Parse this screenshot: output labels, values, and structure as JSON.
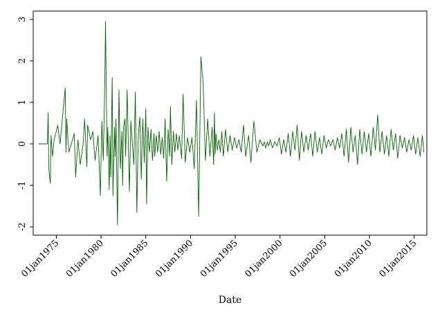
{
  "chart_data": {
    "type": "line",
    "title": "",
    "xlabel": "Date",
    "ylabel": "",
    "x_type": "date",
    "xlim": [
      "1972-06-01",
      "2016-06-01"
    ],
    "ylim": [
      -2.2,
      3.2
    ],
    "yticks": [
      {
        "value": -2,
        "label": "-2"
      },
      {
        "value": -1,
        "label": "-1"
      },
      {
        "value": 0,
        "label": "0"
      },
      {
        "value": 1,
        "label": "1"
      },
      {
        "value": 2,
        "label": "2"
      },
      {
        "value": 3,
        "label": "3"
      }
    ],
    "xticks": [
      {
        "value": "1975-01-01",
        "label": "01jan1975"
      },
      {
        "value": "1980-01-01",
        "label": "01jan1980"
      },
      {
        "value": "1985-01-01",
        "label": "01jan1985"
      },
      {
        "value": "1990-01-01",
        "label": "01jan1990"
      },
      {
        "value": "1995-01-01",
        "label": "01jan1995"
      },
      {
        "value": "2000-01-01",
        "label": "01jan2000"
      },
      {
        "value": "2005-01-01",
        "label": "01jan2005"
      },
      {
        "value": "2010-01-01",
        "label": "01jan2010"
      },
      {
        "value": "2015-01-01",
        "label": "01jan2015"
      }
    ],
    "grid": false,
    "legend": "none",
    "line_color": "#006400",
    "series": [
      {
        "x": [
          "1973-01-01",
          "1974-01-01",
          "1974-02-01",
          "1974-03-01",
          "1974-05-01",
          "1974-06-01",
          "1974-08-01",
          "1974-10-01",
          "1975-03-01",
          "1975-06-01",
          "1976-01-01",
          "1976-02-01",
          "1976-03-01",
          "1976-05-01",
          "1976-06-01",
          "1977-01-01",
          "1977-03-01",
          "1977-06-01",
          "1977-09-01",
          "1978-01-01",
          "1978-03-01",
          "1978-06-01",
          "1978-07-01",
          "1978-11-01",
          "1979-02-01",
          "1979-05-01",
          "1979-09-01",
          "1979-12-01",
          "1980-02-01",
          "1980-04-01",
          "1980-06-01",
          "1980-07-01",
          "1980-09-01",
          "1980-10-01",
          "1980-12-01",
          "1981-01-01",
          "1981-02-01",
          "1981-04-01",
          "1981-05-01",
          "1981-07-01",
          "1981-08-01",
          "1981-09-01",
          "1981-11-01",
          "1982-01-01",
          "1982-03-01",
          "1982-05-01",
          "1982-06-01",
          "1982-07-01",
          "1982-09-01",
          "1982-10-01",
          "1982-12-01",
          "1983-03-01",
          "1983-05-01",
          "1983-09-01",
          "1983-11-01",
          "1984-01-01",
          "1984-03-01",
          "1984-05-01",
          "1984-07-01",
          "1984-09-01",
          "1984-11-01",
          "1985-01-01",
          "1985-02-01",
          "1985-04-01",
          "1985-06-01",
          "1985-08-01",
          "1985-10-01",
          "1985-12-01",
          "1986-01-01",
          "1986-03-01",
          "1986-05-01",
          "1986-07-01",
          "1986-09-01",
          "1986-11-01",
          "1987-01-01",
          "1987-03-01",
          "1987-05-01",
          "1987-07-01",
          "1987-09-01",
          "1987-10-01",
          "1987-12-01",
          "1988-02-01",
          "1988-04-01",
          "1988-06-01",
          "1988-08-01",
          "1988-10-01",
          "1989-01-01",
          "1989-03-01",
          "1989-06-01",
          "1989-09-01",
          "1989-12-01",
          "1990-03-01",
          "1990-06-01",
          "1990-09-01",
          "1990-12-01",
          "1991-03-01",
          "1991-06-01",
          "1991-09-01",
          "1991-12-01",
          "1992-03-01",
          "1992-06-01",
          "1992-08-01",
          "1992-09-01",
          "1992-10-01",
          "1992-11-01",
          "1993-01-01",
          "1993-03-01",
          "1993-05-01",
          "1993-07-01",
          "1993-09-01",
          "1993-12-01",
          "1994-03-01",
          "1994-06-01",
          "1994-09-01",
          "1994-12-01",
          "1995-03-01",
          "1995-06-01",
          "1995-09-01",
          "1995-12-01",
          "1996-03-01",
          "1996-07-01",
          "1996-10-01",
          "1997-02-01",
          "1997-06-01",
          "1997-10-01",
          "1998-02-01",
          "1998-04-01",
          "1998-06-01",
          "1998-08-01",
          "1998-10-01",
          "1998-12-01",
          "1999-03-01",
          "1999-06-01",
          "1999-09-01",
          "1999-12-01",
          "2000-03-01",
          "2000-06-01",
          "2000-09-01",
          "2000-12-01",
          "2001-03-01",
          "2001-06-01",
          "2001-09-01",
          "2001-12-01",
          "2002-03-01",
          "2002-06-01",
          "2002-09-01",
          "2002-12-01",
          "2003-03-01",
          "2003-06-01",
          "2003-09-01",
          "2003-12-01",
          "2004-03-01",
          "2004-06-01",
          "2004-09-01",
          "2004-12-01",
          "2005-03-01",
          "2005-06-01",
          "2005-09-01",
          "2005-12-01",
          "2006-03-01",
          "2006-06-01",
          "2006-09-01",
          "2006-12-01",
          "2007-03-01",
          "2007-06-01",
          "2007-09-01",
          "2007-12-01",
          "2008-03-01",
          "2008-06-01",
          "2008-09-01",
          "2008-12-01",
          "2009-03-01",
          "2009-06-01",
          "2009-09-01",
          "2009-12-01",
          "2010-03-01",
          "2010-06-01",
          "2010-09-01",
          "2010-12-01",
          "2011-03-01",
          "2011-06-01",
          "2011-09-01",
          "2011-12-01",
          "2012-03-01",
          "2012-06-01",
          "2012-09-01",
          "2012-12-01",
          "2013-03-01",
          "2013-06-01",
          "2013-09-01",
          "2013-12-01",
          "2014-03-01",
          "2014-06-01",
          "2014-09-01",
          "2014-12-01",
          "2015-03-01",
          "2015-06-01",
          "2015-09-01",
          "2015-12-01",
          "2016-02-01"
        ],
        "y": [
          0,
          0,
          0.75,
          -0.6,
          -0.95,
          0.2,
          -0.3,
          0.1,
          0.45,
          0,
          1.35,
          -0.2,
          0.6,
          0,
          -0.2,
          0.25,
          -0.8,
          0.1,
          -0.5,
          0,
          0.6,
          -0.55,
          0.45,
          0.1,
          0.3,
          -0.4,
          0.2,
          -1.25,
          0.55,
          -0.4,
          1.5,
          2.95,
          -0.3,
          0.4,
          -1.1,
          0.2,
          -0.8,
          1.6,
          -1.25,
          0.4,
          -0.3,
          0.6,
          -1.95,
          1.3,
          -0.6,
          0.3,
          -1.0,
          0.4,
          0.6,
          -0.3,
          1.3,
          -1.15,
          0.55,
          -0.5,
          1.25,
          -1.65,
          0.2,
          0.65,
          -0.85,
          0.6,
          -0.45,
          0.85,
          -1.45,
          0.4,
          -0.2,
          0.35,
          -0.4,
          0.25,
          -0.3,
          0.2,
          -0.2,
          0.3,
          -0.25,
          0.15,
          -0.35,
          0.6,
          -0.9,
          0.35,
          -0.3,
          0.9,
          -0.5,
          0.3,
          -0.2,
          0.25,
          -0.15,
          0.2,
          -0.35,
          1.2,
          -0.45,
          0.15,
          -0.2,
          0.15,
          -0.6,
          1.05,
          -1.75,
          2.1,
          1.45,
          -0.4,
          0.6,
          -0.3,
          0.4,
          -0.5,
          0.75,
          -0.25,
          0.25,
          -0.15,
          0.1,
          -0.2,
          0.3,
          -0.3,
          0.35,
          -0.2,
          0.2,
          -0.15,
          0.15,
          -0.1,
          0.1,
          -0.2,
          0.45,
          -0.3,
          0.2,
          -0.45,
          0.55,
          -0.2,
          0.1,
          -0.05,
          0.05,
          -0.1,
          0.05,
          -0.05,
          0.1,
          -0.1,
          0.05,
          -0.05,
          0.15,
          -0.25,
          0.1,
          -0.2,
          0.25,
          -0.3,
          0.3,
          -0.15,
          0.45,
          -0.4,
          0.3,
          -0.2,
          0.2,
          -0.15,
          0.25,
          -0.3,
          0.3,
          -0.2,
          0.15,
          -0.25,
          0.2,
          -0.1,
          0.1,
          -0.05,
          0.1,
          -0.15,
          0.15,
          -0.1,
          0.25,
          -0.3,
          0.35,
          -0.45,
          0.4,
          -0.2,
          0.2,
          -0.5,
          0.35,
          -0.25,
          0.3,
          -0.2,
          0.25,
          -0.3,
          0.4,
          -0.15,
          0.7,
          -0.2,
          0.3,
          -0.25,
          0.2,
          -0.3,
          0.35,
          -0.15,
          0.25,
          -0.35,
          0.2,
          -0.1,
          0.15,
          -0.2,
          0.1,
          -0.15,
          0.2,
          -0.25,
          0.15,
          -0.3,
          0.2,
          -0.2
        ]
      }
    ]
  }
}
